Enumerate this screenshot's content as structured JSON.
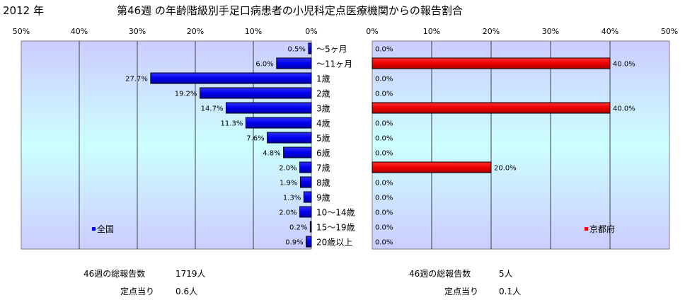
{
  "header": {
    "year": "2012 年",
    "title": "第46週 の年齢階級別手足口病患者の小児科定点医療機関からの報告割合"
  },
  "chart_data": [
    {
      "type": "bar",
      "orientation": "horizontal",
      "direction": "right-to-left",
      "legend": "全国",
      "legend_position": "bottom-left",
      "categories": [
        "～5ヶ月",
        "～11ヶ月",
        "1歳",
        "2歳",
        "3歳",
        "4歳",
        "5歳",
        "6歳",
        "7歳",
        "8歳",
        "9歳",
        "10～14歳",
        "15～19歳",
        "20歳以上"
      ],
      "values": [
        0.5,
        6.0,
        27.7,
        19.2,
        14.7,
        11.3,
        7.6,
        4.8,
        2.0,
        1.9,
        1.3,
        2.0,
        0.2,
        0.9
      ],
      "value_labels": [
        "0.5%",
        "6.0%",
        "27.7%",
        "19.2%",
        "14.7%",
        "11.3%",
        "7.6%",
        "4.8%",
        "2.0%",
        "1.9%",
        "1.3%",
        "2.0%",
        "0.2%",
        "0.9%"
      ],
      "xlim": [
        0,
        50
      ],
      "tick_labels": [
        "0%",
        "10%",
        "20%",
        "30%",
        "40%",
        "50%"
      ],
      "bar_color": "#0000ff",
      "grid": true
    },
    {
      "type": "bar",
      "orientation": "horizontal",
      "direction": "left-to-right",
      "legend": "京都府",
      "legend_position": "bottom-right",
      "categories": [
        "～5ヶ月",
        "～11ヶ月",
        "1歳",
        "2歳",
        "3歳",
        "4歳",
        "5歳",
        "6歳",
        "7歳",
        "8歳",
        "9歳",
        "10～14歳",
        "15～19歳",
        "20歳以上"
      ],
      "values": [
        0.0,
        40.0,
        0.0,
        0.0,
        40.0,
        0.0,
        0.0,
        0.0,
        20.0,
        0.0,
        0.0,
        0.0,
        0.0,
        0.0
      ],
      "value_labels": [
        "0.0%",
        "40.0%",
        "0.0%",
        "0.0%",
        "40.0%",
        "0.0%",
        "0.0%",
        "0.0%",
        "20.0%",
        "0.0%",
        "0.0%",
        "0.0%",
        "0.0%",
        "0.0%"
      ],
      "xlim": [
        0,
        50
      ],
      "tick_labels": [
        "0%",
        "10%",
        "20%",
        "30%",
        "40%",
        "50%"
      ],
      "bar_color": "#ff0000",
      "grid": true
    }
  ],
  "stats": {
    "national": {
      "total_label": "46週の総報告数",
      "total_value": "1719人",
      "per_label": "定点当り",
      "per_value": "0.6人"
    },
    "kyoto": {
      "total_label": "46週の総報告数",
      "total_value": "5人",
      "per_label": "定点当り",
      "per_value": "0.1人"
    }
  }
}
